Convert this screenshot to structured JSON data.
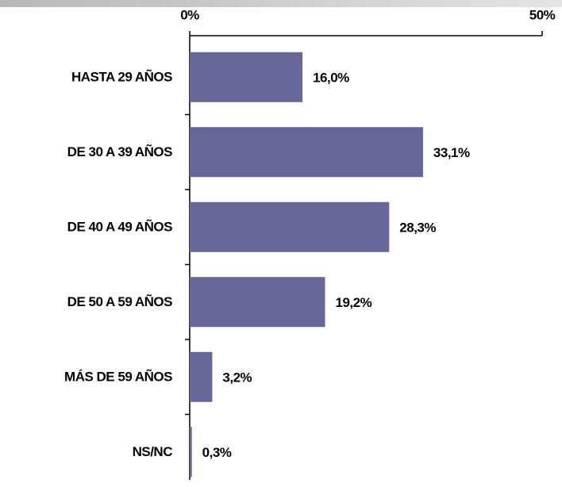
{
  "chart_data": {
    "type": "bar",
    "orientation": "horizontal",
    "categories": [
      "HASTA 29 AÑOS",
      "DE 30 A 39 AÑOS",
      "DE 40 A 49 AÑOS",
      "DE 50 A 59 AÑOS",
      "MÁS DE 59 AÑOS",
      "NS/NC"
    ],
    "values": [
      16.0,
      33.1,
      28.3,
      19.2,
      3.2,
      0.3
    ],
    "value_labels": [
      "16,0%",
      "33,1%",
      "28,3%",
      "19,2%",
      "3,2%",
      "0,3%"
    ],
    "color": "#666699",
    "xlim": [
      0,
      50
    ],
    "xticks": [
      {
        "value": 0,
        "label": "0%"
      },
      {
        "value": 50,
        "label": "50%"
      }
    ]
  }
}
